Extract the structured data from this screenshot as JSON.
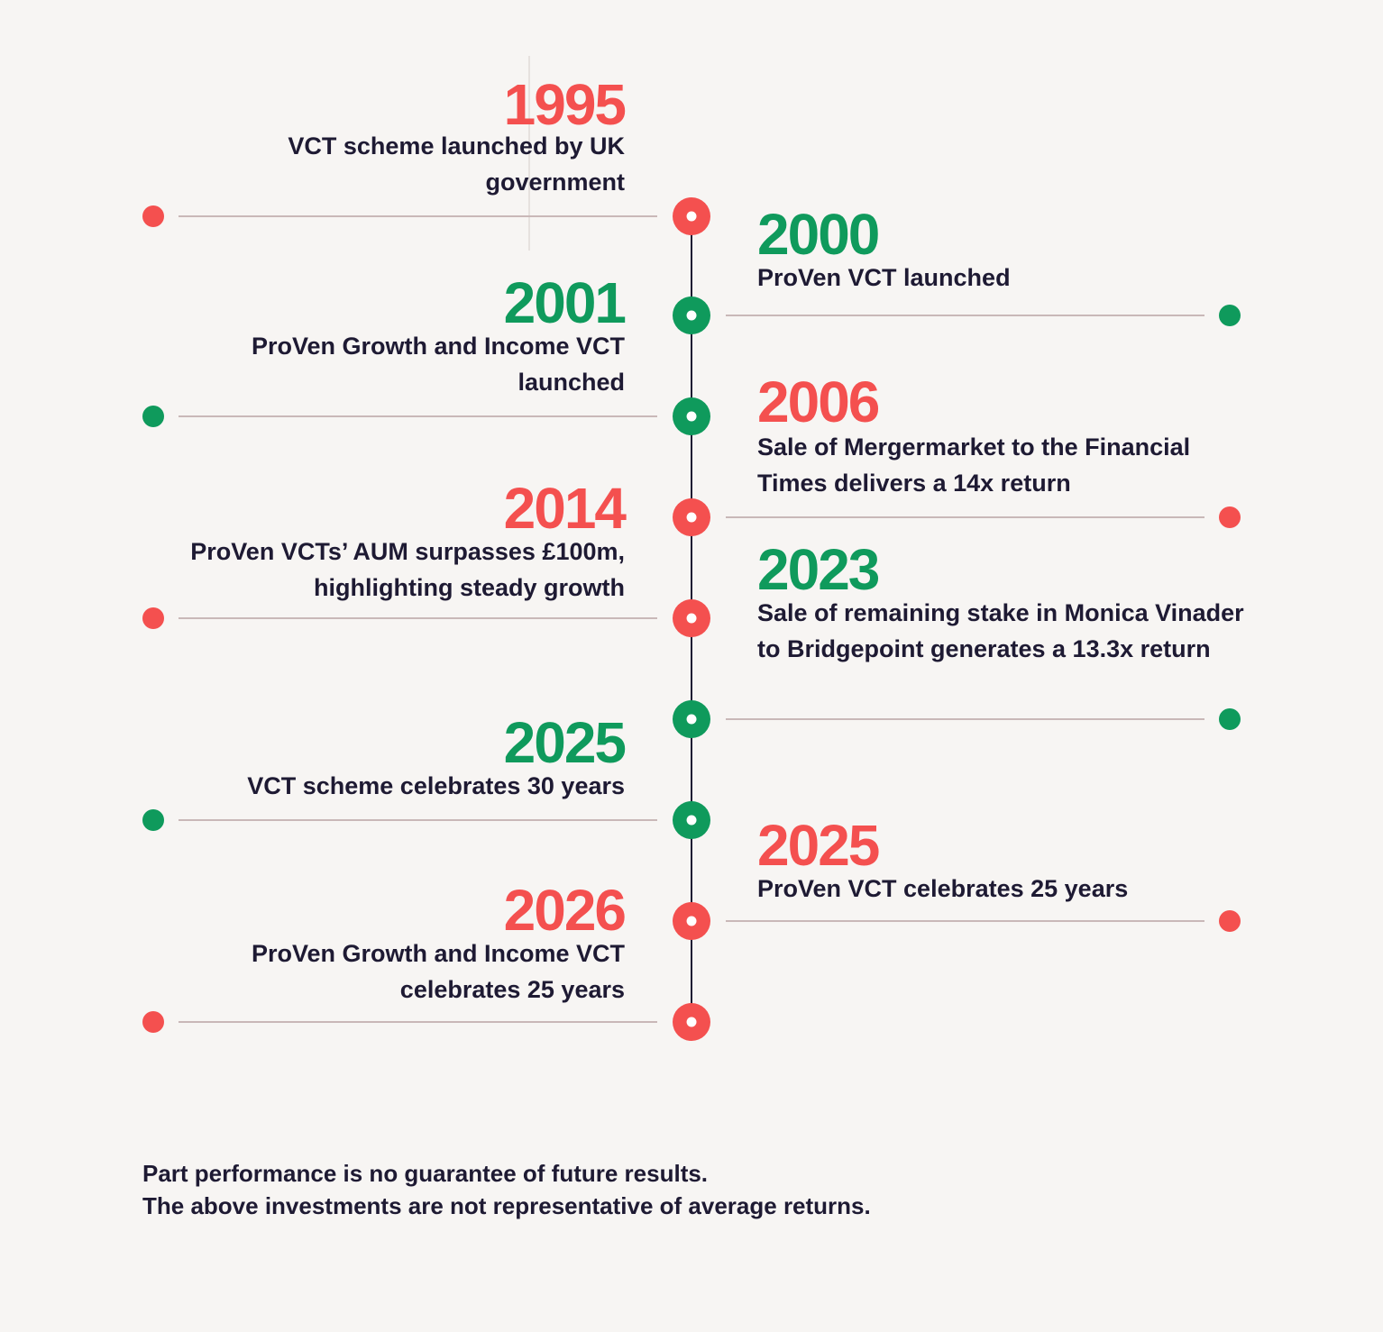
{
  "colors": {
    "red": "#f4504f",
    "green": "#0f9a5c",
    "connector": "#c9b8b8",
    "spine": "#1e1a33",
    "text": "#1e1a33",
    "background": "#f7f5f3"
  },
  "events": [
    {
      "year": "1995",
      "description": "VCT scheme launched by UK government",
      "side": "left",
      "color": "red"
    },
    {
      "year": "2000",
      "description": "ProVen VCT launched",
      "side": "right",
      "color": "green"
    },
    {
      "year": "2001",
      "description": "ProVen Growth and Income VCT launched",
      "side": "left",
      "color": "green"
    },
    {
      "year": "2006",
      "description": "Sale of Mergermarket to the Financial Times delivers a 14x return",
      "side": "right",
      "color": "red"
    },
    {
      "year": "2014",
      "description": "ProVen VCTs’ AUM surpasses £100m, highlighting steady growth",
      "side": "left",
      "color": "red"
    },
    {
      "year": "2023",
      "description": "Sale of remaining stake in Monica Vinader to Bridgepoint generates a 13.3x return",
      "side": "right",
      "color": "green"
    },
    {
      "year": "2025",
      "description": "VCT scheme celebrates 30 years",
      "side": "left",
      "color": "green"
    },
    {
      "year": "2025",
      "description": "ProVen VCT celebrates 25 years",
      "side": "right",
      "color": "red"
    },
    {
      "year": "2026",
      "description": "ProVen Growth and Income VCT celebrates 25 years",
      "side": "left",
      "color": "red"
    }
  ],
  "disclaimer": {
    "line1": "Part performance is no guarantee of future results.",
    "line2": "The above investments are not representative of average returns."
  }
}
